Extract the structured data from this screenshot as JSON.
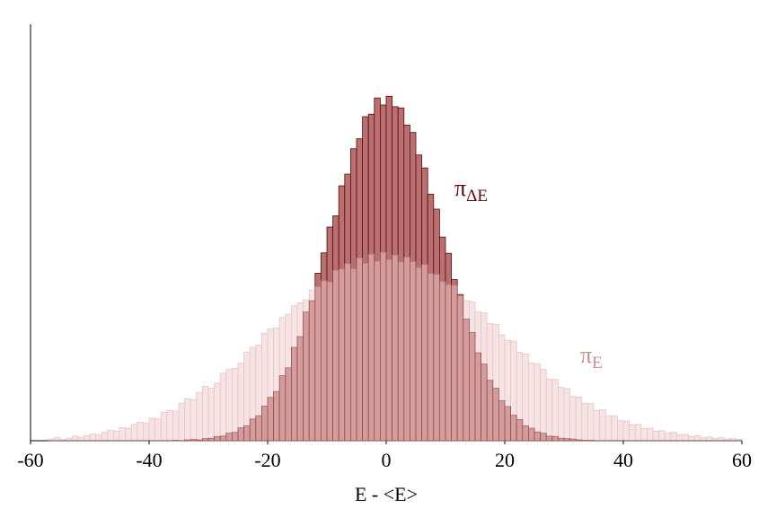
{
  "chart_data": {
    "type": "histogram",
    "xlabel": "E - <E>",
    "xlim": [
      -60,
      60
    ],
    "xticks": [
      -60,
      -40,
      -20,
      0,
      20,
      40,
      60
    ],
    "ylim": [
      0,
      100
    ],
    "bins": [
      -60,
      -59,
      -58,
      -57,
      -56,
      -55,
      -54,
      -53,
      -52,
      -51,
      -50,
      -49,
      -48,
      -47,
      -46,
      -45,
      -44,
      -43,
      -42,
      -41,
      -40,
      -39,
      -38,
      -37,
      -36,
      -35,
      -34,
      -33,
      -32,
      -31,
      -30,
      -29,
      -28,
      -27,
      -26,
      -25,
      -24,
      -23,
      -22,
      -21,
      -20,
      -19,
      -18,
      -17,
      -16,
      -15,
      -14,
      -13,
      -12,
      -11,
      -10,
      -9,
      -8,
      -7,
      -6,
      -5,
      -4,
      -3,
      -2,
      -1,
      0,
      1,
      2,
      3,
      4,
      5,
      6,
      7,
      8,
      9,
      10,
      11,
      12,
      13,
      14,
      15,
      16,
      17,
      18,
      19,
      20,
      21,
      22,
      23,
      24,
      25,
      26,
      27,
      28,
      29,
      30,
      31,
      32,
      33,
      34,
      35,
      36,
      37,
      38,
      39,
      40,
      41,
      42,
      43,
      44,
      45,
      46,
      47,
      48,
      49,
      50,
      51,
      52,
      53,
      54,
      55,
      56,
      57,
      58,
      59,
      60
    ],
    "series": [
      {
        "name": "π",
        "subscript": "ΔE",
        "color": "#b87070",
        "edgecolor": "#5a0a0a",
        "opacity": 1,
        "values": [
          0,
          0,
          0,
          0,
          0,
          0,
          0,
          0,
          0,
          0,
          0,
          0,
          0,
          0,
          0,
          0,
          0,
          0,
          0,
          0,
          0,
          0,
          0,
          0,
          0.1,
          0,
          0.2,
          0.3,
          0.2,
          0.5,
          0.6,
          1.0,
          1.1,
          1.8,
          2.0,
          3.1,
          3.6,
          5.2,
          6.0,
          8.3,
          10.4,
          11.8,
          15.6,
          17.5,
          22.4,
          25.0,
          30.9,
          33.6,
          40.2,
          45.1,
          51.3,
          54.0,
          61.2,
          64.0,
          70.1,
          72.5,
          77.8,
          78.4,
          82.3,
          80.6,
          82.7,
          80.2,
          79.9,
          75.8,
          74.0,
          68.6,
          65.5,
          59.2,
          55.6,
          48.9,
          45.0,
          38.7,
          35.1,
          29.2,
          26.0,
          21.1,
          18.4,
          14.5,
          12.6,
          9.6,
          8.2,
          6.1,
          5.1,
          3.6,
          3.0,
          2.1,
          1.8,
          1.1,
          1.0,
          0.6,
          0.5,
          0.4,
          0.2,
          0.1,
          0.1,
          0,
          0,
          0,
          0,
          0,
          0,
          0,
          0,
          0,
          0,
          0,
          0,
          0,
          0,
          0,
          0,
          0,
          0,
          0,
          0,
          0,
          0,
          0,
          0,
          0
        ]
      },
      {
        "name": "π",
        "subscript": "E",
        "color": "#f0c8c8",
        "edgecolor": "#c49090",
        "opacity": 0.5,
        "values": [
          0,
          0,
          0,
          0.4,
          0.7,
          0.3,
          0.6,
          1.1,
          0.8,
          1.2,
          1.6,
          1.4,
          2.0,
          2.5,
          2.3,
          3.1,
          3.0,
          3.9,
          4.4,
          4.2,
          5.4,
          5.2,
          6.8,
          7.3,
          7.1,
          9.0,
          10.1,
          9.8,
          11.6,
          13.0,
          12.6,
          13.8,
          16.2,
          17.1,
          17.4,
          18.6,
          21.3,
          22.4,
          23.0,
          25.8,
          26.9,
          27.0,
          29.6,
          30.3,
          32.4,
          33.1,
          33.8,
          36.2,
          37.0,
          38.4,
          38.1,
          40.9,
          41.2,
          42.5,
          41.3,
          43.9,
          42.6,
          44.8,
          43.1,
          45.2,
          43.5,
          44.6,
          42.9,
          44.1,
          43.0,
          41.6,
          42.3,
          40.1,
          39.9,
          38.2,
          37.5,
          37.3,
          34.8,
          33.6,
          33.4,
          30.9,
          30.7,
          28.1,
          27.9,
          25.4,
          24.1,
          23.9,
          21.2,
          20.8,
          18.6,
          18.4,
          17.1,
          14.8,
          14.7,
          12.8,
          12.5,
          10.6,
          10.5,
          9.0,
          8.9,
          7.3,
          7.4,
          6.0,
          5.9,
          4.8,
          4.7,
          3.8,
          3.9,
          2.9,
          3.0,
          2.3,
          2.4,
          1.8,
          2.0,
          1.4,
          1.5,
          1.0,
          1.2,
          0.7,
          0.9,
          0.5,
          0.7,
          0.4,
          0.6,
          0.3
        ]
      }
    ]
  }
}
